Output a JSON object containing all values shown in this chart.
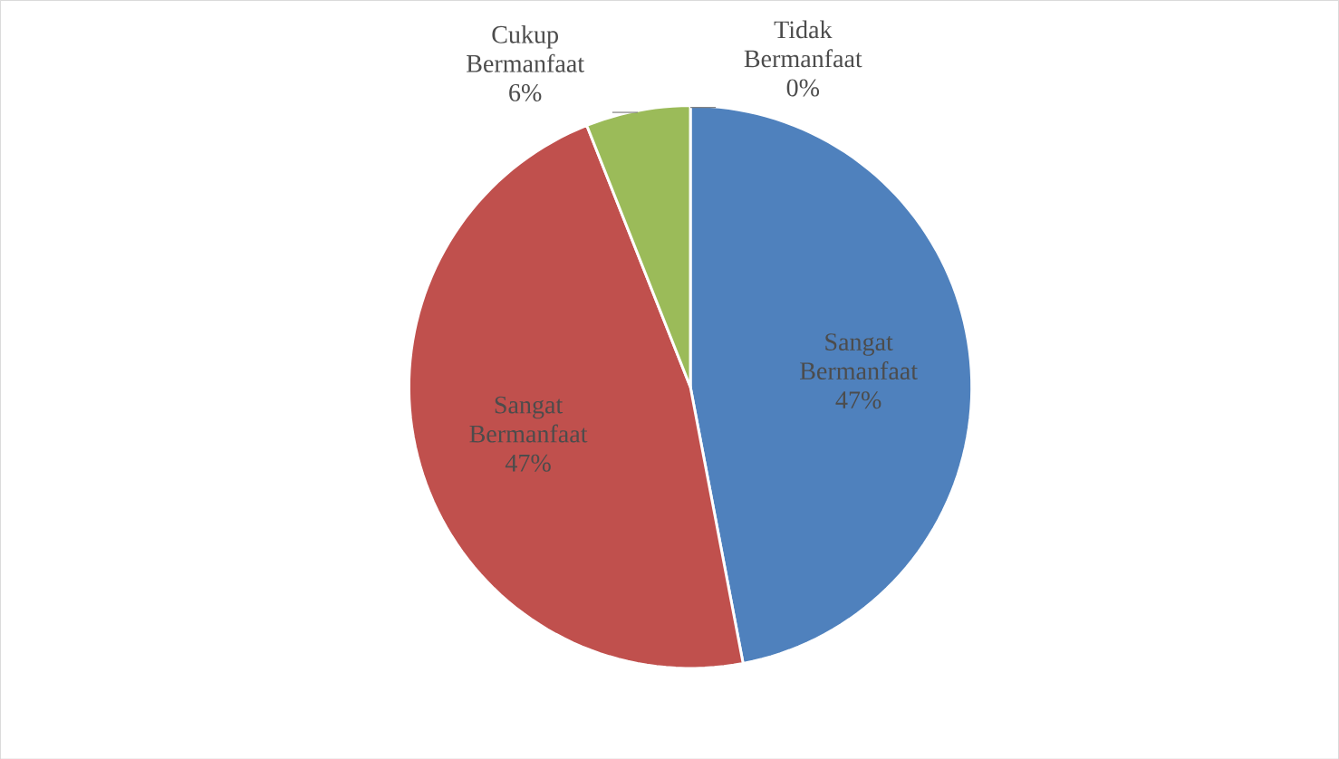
{
  "chart_data": {
    "type": "pie",
    "categories": [
      "Sangat Bermanfaat",
      "Sangat Bermanfaat",
      "Cukup Bermanfaat",
      "Tidak Bermanfaat"
    ],
    "values": [
      47,
      47,
      6,
      0
    ],
    "value_labels": [
      "47%",
      "47%",
      "6%",
      "0%"
    ],
    "colors": [
      "#4f81bd",
      "#c0504d",
      "#9bbb59",
      "#8064a2"
    ]
  }
}
